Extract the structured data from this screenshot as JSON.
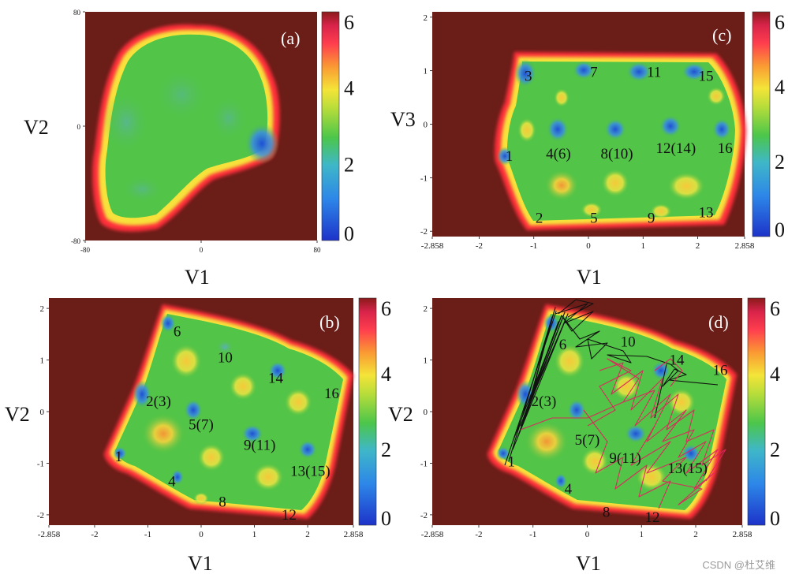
{
  "watermark": "CSDN @杜艾维",
  "colors": {
    "outside": "#6b1d18",
    "rim": "#ff3b3b",
    "plateau": "#52c447",
    "low": "#1e5fd6",
    "mid": "#f2e23a"
  },
  "colorbar": {
    "ticks": [
      "0",
      "2",
      "4",
      "6"
    ],
    "range": [
      0,
      6
    ]
  },
  "chart_data": [
    {
      "type": "heatmap",
      "panel": "(a)",
      "xlabel": "V1",
      "ylabel": "V2",
      "xticks": [
        "-80",
        "0",
        "80"
      ],
      "yticks": [
        "80",
        "0",
        "-80"
      ],
      "xlim": [
        -80,
        80
      ],
      "ylim": [
        -80,
        80
      ],
      "minima": [
        {
          "x": 48,
          "y": -15,
          "value": 0.5
        }
      ],
      "colorbar_ticks": [
        "0",
        "2",
        "4",
        "6"
      ]
    },
    {
      "type": "heatmap",
      "panel": "(c)",
      "xlabel": "V1",
      "ylabel": "V3",
      "xticks": [
        "-2.858",
        "-2",
        "-1",
        "0",
        "1",
        "2",
        "2.858"
      ],
      "yticks": [
        "2",
        "1",
        "0",
        "-1",
        "-2"
      ],
      "xlim": [
        -2.858,
        2.858
      ],
      "ylim": [
        -2.1,
        2.1
      ],
      "annotations": [
        {
          "text": "1",
          "x": -1.45,
          "y": -0.6
        },
        {
          "text": "2",
          "x": -0.9,
          "y": -1.75
        },
        {
          "text": "3",
          "x": -1.1,
          "y": 0.9
        },
        {
          "text": "4(6)",
          "x": -0.55,
          "y": -0.55
        },
        {
          "text": "5",
          "x": 0.1,
          "y": -1.75
        },
        {
          "text": "7",
          "x": 0.1,
          "y": 0.97
        },
        {
          "text": "8(10)",
          "x": 0.52,
          "y": -0.55
        },
        {
          "text": "9",
          "x": 1.15,
          "y": -1.75
        },
        {
          "text": "11",
          "x": 1.2,
          "y": 0.97
        },
        {
          "text": "12(14)",
          "x": 1.6,
          "y": -0.45
        },
        {
          "text": "13",
          "x": 2.15,
          "y": -1.65
        },
        {
          "text": "15",
          "x": 2.15,
          "y": 0.9
        },
        {
          "text": "16",
          "x": 2.5,
          "y": -0.45
        }
      ],
      "colorbar_ticks": [
        "0",
        "2",
        "4",
        "6"
      ]
    },
    {
      "type": "heatmap",
      "panel": "(b)",
      "xlabel": "V1",
      "ylabel": "V2",
      "xticks": [
        "-2.858",
        "-2",
        "-1",
        "0",
        "1",
        "2",
        "2.858"
      ],
      "yticks": [
        "2",
        "1",
        "0",
        "-1",
        "-2"
      ],
      "xlim": [
        -2.858,
        2.858
      ],
      "ylim": [
        -2.2,
        2.2
      ],
      "annotations": [
        {
          "text": "1",
          "x": -1.55,
          "y": -0.87
        },
        {
          "text": "2(3)",
          "x": -0.8,
          "y": 0.2
        },
        {
          "text": "4",
          "x": -0.55,
          "y": -1.35
        },
        {
          "text": "5(7)",
          "x": 0.0,
          "y": -0.25
        },
        {
          "text": "6",
          "x": -0.45,
          "y": 1.55
        },
        {
          "text": "8",
          "x": 0.4,
          "y": -1.75
        },
        {
          "text": "9(11)",
          "x": 1.1,
          "y": -0.65
        },
        {
          "text": "10",
          "x": 0.45,
          "y": 1.05
        },
        {
          "text": "12",
          "x": 1.65,
          "y": -2.0
        },
        {
          "text": "13(15)",
          "x": 2.05,
          "y": -1.15
        },
        {
          "text": "14",
          "x": 1.4,
          "y": 0.65
        },
        {
          "text": "16",
          "x": 2.45,
          "y": 0.35
        }
      ],
      "colorbar_ticks": [
        "0",
        "2",
        "4",
        "6"
      ]
    },
    {
      "type": "heatmap",
      "panel": "(d)",
      "xlabel": "V1",
      "ylabel": "V2",
      "xticks": [
        "-2.858",
        "-2",
        "-1",
        "0",
        "1",
        "2",
        "2.858"
      ],
      "yticks": [
        "2",
        "1",
        "0",
        "-1",
        "-2"
      ],
      "xlim": [
        -2.858,
        2.858
      ],
      "ylim": [
        -2.2,
        2.2
      ],
      "annotations": [
        {
          "text": "1",
          "x": -1.4,
          "y": -0.97
        },
        {
          "text": "2(3)",
          "x": -0.8,
          "y": 0.2
        },
        {
          "text": "4",
          "x": -0.35,
          "y": -1.5
        },
        {
          "text": "5(7)",
          "x": 0.0,
          "y": -0.55
        },
        {
          "text": "6",
          "x": -0.45,
          "y": 1.3
        },
        {
          "text": "8",
          "x": 0.35,
          "y": -1.95
        },
        {
          "text": "9(11)",
          "x": 0.7,
          "y": -0.9
        },
        {
          "text": "10",
          "x": 0.75,
          "y": 1.35
        },
        {
          "text": "12",
          "x": 1.2,
          "y": -2.05
        },
        {
          "text": "13(15)",
          "x": 1.85,
          "y": -1.1
        },
        {
          "text": "14",
          "x": 1.65,
          "y": 1.0
        },
        {
          "text": "16",
          "x": 2.45,
          "y": 0.8
        }
      ],
      "trajectories": [
        {
          "color": "#000000",
          "label": "",
          "region": "1 - 6 - 10 - 14"
        },
        {
          "color": "#e0245e",
          "label": "",
          "region": "5(7) - 9(11) - 13(15) - 14"
        }
      ],
      "colorbar_ticks": [
        "0",
        "2",
        "4",
        "6"
      ]
    }
  ]
}
